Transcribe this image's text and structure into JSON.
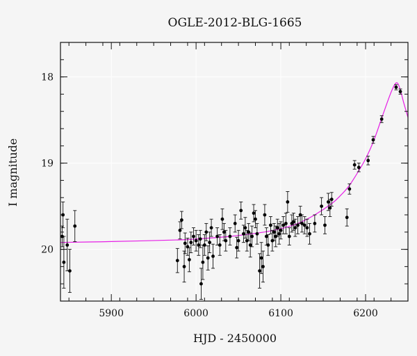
{
  "chart_data": {
    "type": "scatter",
    "title": "OGLE-2012-BLG-1665",
    "xlabel": "HJD - 2450000",
    "ylabel": "I magnitude",
    "xlim": [
      5840,
      6250
    ],
    "ylim": [
      20.6,
      17.6
    ],
    "y_inverted": true,
    "grid": true,
    "x_ticks": [
      5900,
      6000,
      6100,
      6200
    ],
    "y_ticks": [
      18,
      19,
      20
    ],
    "colors": {
      "model": "#e61ee6",
      "points": "#000000",
      "background": "#f5f5f5"
    },
    "series": [
      {
        "points": [
          [
            5842,
            19.85,
            0.12
          ],
          [
            5843,
            19.6,
            0.15
          ],
          [
            5844,
            20.15,
            0.3
          ],
          [
            5848,
            19.95,
            0.3
          ],
          [
            5851,
            20.25,
            0.25
          ],
          [
            5857,
            19.73,
            0.18
          ],
          [
            5978,
            20.13,
            0.14
          ],
          [
            5981,
            19.78,
            0.1
          ],
          [
            5983,
            19.66,
            0.1
          ],
          [
            5986,
            20.2,
            0.18
          ],
          [
            5987,
            19.93,
            0.12
          ],
          [
            5990,
            19.97,
            0.1
          ],
          [
            5992,
            20.12,
            0.14
          ],
          [
            5994,
            19.92,
            0.12
          ],
          [
            5997,
            19.85,
            0.1
          ],
          [
            6000,
            19.9,
            0.12
          ],
          [
            6003,
            19.95,
            0.12
          ],
          [
            6005,
            19.88,
            0.1
          ],
          [
            6006,
            20.4,
            0.18
          ],
          [
            6008,
            20.15,
            0.2
          ],
          [
            6010,
            19.95,
            0.12
          ],
          [
            6012,
            19.8,
            0.1
          ],
          [
            6014,
            20.1,
            0.14
          ],
          [
            6016,
            19.92,
            0.12
          ],
          [
            6018,
            19.75,
            0.1
          ],
          [
            6020,
            20.08,
            0.14
          ],
          [
            6025,
            19.85,
            0.1
          ],
          [
            6028,
            19.95,
            0.12
          ],
          [
            6031,
            19.65,
            0.12
          ],
          [
            6033,
            19.8,
            0.1
          ],
          [
            6035,
            19.9,
            0.12
          ],
          [
            6040,
            19.85,
            0.1
          ],
          [
            6046,
            19.7,
            0.1
          ],
          [
            6048,
            19.98,
            0.12
          ],
          [
            6050,
            19.9,
            0.12
          ],
          [
            6053,
            19.55,
            0.1
          ],
          [
            6056,
            19.82,
            0.1
          ],
          [
            6058,
            19.75,
            0.12
          ],
          [
            6060,
            19.9,
            0.12
          ],
          [
            6062,
            19.8,
            0.1
          ],
          [
            6064,
            19.95,
            0.14
          ],
          [
            6066,
            19.85,
            0.12
          ],
          [
            6068,
            19.58,
            0.1
          ],
          [
            6070,
            19.65,
            0.1
          ],
          [
            6072,
            19.82,
            0.12
          ],
          [
            6075,
            20.25,
            0.2
          ],
          [
            6077,
            20.1,
            0.18
          ],
          [
            6079,
            20.2,
            0.18
          ],
          [
            6081,
            19.6,
            0.12
          ],
          [
            6083,
            19.85,
            0.1
          ],
          [
            6085,
            19.95,
            0.12
          ],
          [
            6088,
            19.72,
            0.1
          ],
          [
            6090,
            19.9,
            0.12
          ],
          [
            6092,
            19.8,
            0.1
          ],
          [
            6094,
            19.85,
            0.12
          ],
          [
            6096,
            19.75,
            0.1
          ],
          [
            6098,
            19.82,
            0.12
          ],
          [
            6100,
            19.78,
            0.1
          ],
          [
            6103,
            19.72,
            0.1
          ],
          [
            6106,
            19.7,
            0.12
          ],
          [
            6108,
            19.45,
            0.12
          ],
          [
            6110,
            19.85,
            0.1
          ],
          [
            6113,
            19.7,
            0.1
          ],
          [
            6115,
            19.68,
            0.1
          ],
          [
            6117,
            19.75,
            0.1
          ],
          [
            6120,
            19.72,
            0.1
          ],
          [
            6123,
            19.6,
            0.1
          ],
          [
            6125,
            19.7,
            0.1
          ],
          [
            6128,
            19.72,
            0.1
          ],
          [
            6131,
            19.75,
            0.1
          ],
          [
            6134,
            19.82,
            0.12
          ],
          [
            6140,
            19.7,
            0.1
          ],
          [
            6148,
            19.5,
            0.1
          ],
          [
            6152,
            19.72,
            0.1
          ],
          [
            6156,
            19.45,
            0.1
          ],
          [
            6158,
            19.52,
            0.1
          ],
          [
            6160,
            19.42,
            0.08
          ],
          [
            6178,
            19.63,
            0.1
          ],
          [
            6181,
            19.3,
            0.06
          ],
          [
            6187,
            19.02,
            0.05
          ],
          [
            6192,
            19.05,
            0.05
          ],
          [
            6203,
            18.97,
            0.05
          ],
          [
            6209,
            18.73,
            0.04
          ],
          [
            6219,
            18.49,
            0.04
          ],
          [
            6236,
            18.12,
            0.03
          ],
          [
            6241,
            18.17,
            0.03
          ]
        ]
      }
    ],
    "model": {
      "x": [
        5840,
        5900,
        5980,
        6000,
        6040,
        6080,
        6100,
        6120,
        6140,
        6160,
        6170,
        6180,
        6190,
        6200,
        6210,
        6220,
        6230,
        6236,
        6240,
        6245,
        6250
      ],
      "y": [
        19.92,
        19.91,
        19.89,
        19.88,
        19.85,
        19.8,
        19.76,
        19.7,
        19.6,
        19.47,
        19.38,
        19.27,
        19.12,
        18.95,
        18.73,
        18.45,
        18.18,
        18.07,
        18.12,
        18.3,
        18.47
      ]
    }
  }
}
